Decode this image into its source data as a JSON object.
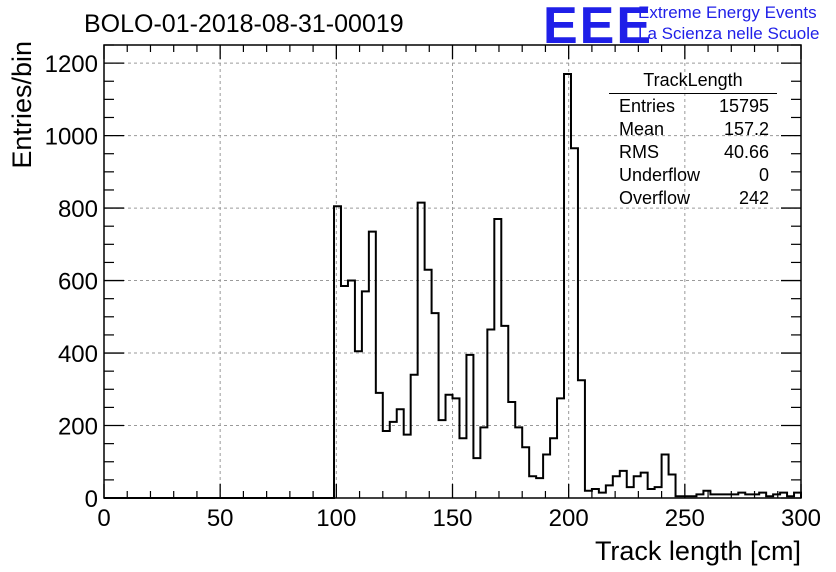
{
  "header": {
    "run_title": "BOLO-01-2018-08-31-00019",
    "logo": "EEE",
    "logo_line1": "Extreme Energy Events",
    "logo_line2": "La Scienza nelle Scuole"
  },
  "stats_box": {
    "title": "TrackLength",
    "rows": [
      {
        "label": "Entries",
        "value": "15795"
      },
      {
        "label": "Mean",
        "value": "157.2"
      },
      {
        "label": "RMS",
        "value": "40.66"
      },
      {
        "label": "Underflow",
        "value": "0"
      },
      {
        "label": "Overflow",
        "value": "242"
      }
    ]
  },
  "colors": {
    "logo": "#1f1fe8",
    "line": "#000000",
    "grid": "#9a9a9a"
  },
  "chart_data": {
    "type": "bar",
    "subtype": "step-histogram",
    "xlabel": "Track length [cm]",
    "ylabel": "Entries/bin",
    "xlim": [
      0,
      300
    ],
    "ylim": [
      0,
      1250
    ],
    "x_ticks": [
      0,
      50,
      100,
      150,
      200,
      250,
      300
    ],
    "y_ticks": [
      0,
      200,
      400,
      600,
      800,
      1000,
      1200
    ],
    "grid": true,
    "bin_width": 3,
    "bin_low_edges": [
      99,
      102,
      105,
      108,
      111,
      114,
      117,
      120,
      123,
      126,
      129,
      132,
      135,
      138,
      141,
      144,
      147,
      150,
      153,
      156,
      159,
      162,
      165,
      168,
      171,
      174,
      177,
      180,
      183,
      186,
      189,
      192,
      195,
      198,
      201,
      204,
      207,
      210,
      213,
      216,
      219,
      222,
      225,
      228,
      231,
      234,
      237,
      240,
      243,
      246,
      249,
      252,
      255,
      258,
      261,
      264,
      267,
      270,
      273,
      276,
      279,
      282,
      285,
      288,
      291,
      294,
      297
    ],
    "values": [
      805,
      585,
      600,
      405,
      570,
      735,
      290,
      185,
      210,
      245,
      175,
      340,
      815,
      630,
      510,
      215,
      285,
      275,
      165,
      395,
      110,
      195,
      465,
      770,
      475,
      265,
      195,
      140,
      60,
      55,
      120,
      165,
      275,
      1170,
      965,
      325,
      20,
      25,
      15,
      35,
      60,
      75,
      30,
      60,
      70,
      25,
      30,
      120,
      65,
      5,
      5,
      5,
      10,
      20,
      10,
      10,
      10,
      10,
      15,
      10,
      10,
      15,
      5,
      10,
      15,
      5,
      15
    ]
  }
}
